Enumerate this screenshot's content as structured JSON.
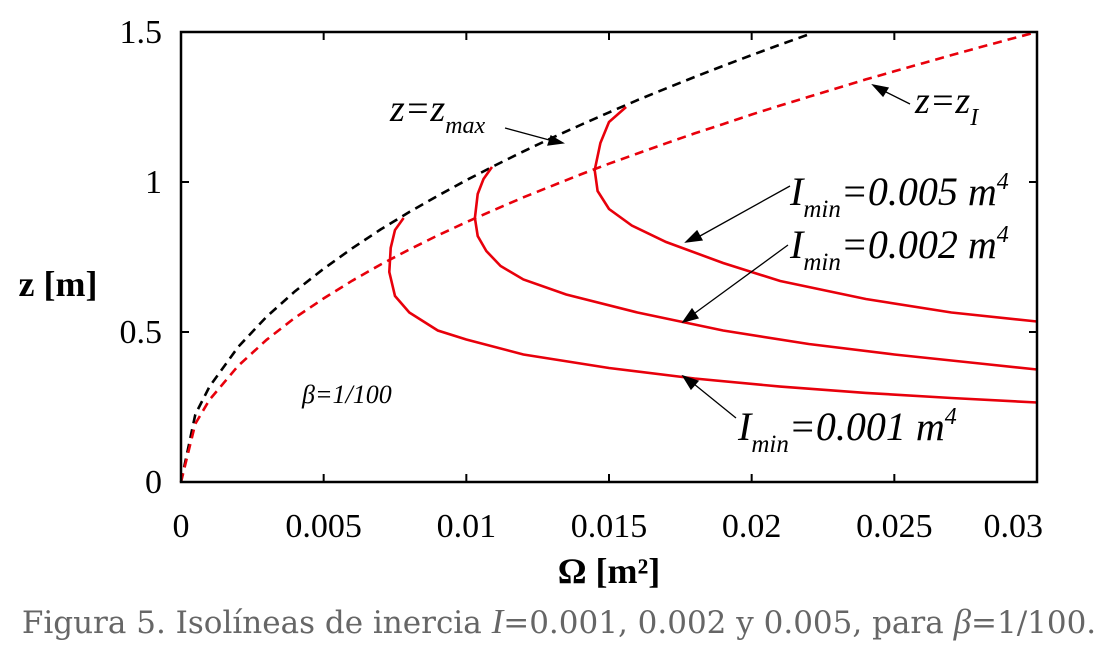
{
  "chart_data": {
    "type": "line",
    "xlabel": "Ω [m²]",
    "ylabel": "z [m]",
    "xlim": [
      0,
      0.03
    ],
    "ylim": [
      0,
      1.5
    ],
    "xticks": [
      "0",
      "0.005",
      "0.01",
      "0.015",
      "0.02",
      "0.025",
      "0.03"
    ],
    "yticks": [
      "0",
      "0.5",
      "1",
      "1.5"
    ],
    "grid": false,
    "beta_label": "β=1/100",
    "boundary_curves": [
      {
        "label": "z=zmax",
        "label_main": "z=z",
        "label_sub": "max",
        "color": "#000000",
        "style": "dashed",
        "x": [
          0,
          0.0005,
          0.001,
          0.002,
          0.003,
          0.004,
          0.005,
          0.006,
          0.007,
          0.008,
          0.009,
          0.01,
          0.011,
          0.012,
          0.013,
          0.014,
          0.015,
          0.016,
          0.017,
          0.018,
          0.019,
          0.02,
          0.021,
          0.022
        ],
        "y": [
          0,
          0.225,
          0.318,
          0.45,
          0.551,
          0.636,
          0.711,
          0.779,
          0.842,
          0.9,
          0.954,
          1.006,
          1.055,
          1.102,
          1.147,
          1.19,
          1.232,
          1.273,
          1.312,
          1.35,
          1.387,
          1.423,
          1.458,
          1.492
        ]
      },
      {
        "label": "z=zI",
        "label_main": "z=z",
        "label_sub": "I",
        "color": "#e8000b",
        "style": "dashed",
        "x": [
          0,
          0.0005,
          0.001,
          0.002,
          0.003,
          0.004,
          0.005,
          0.006,
          0.007,
          0.008,
          0.009,
          0.01,
          0.011,
          0.012,
          0.013,
          0.014,
          0.015,
          0.016,
          0.017,
          0.018,
          0.019,
          0.02,
          0.021,
          0.022,
          0.023,
          0.024,
          0.025,
          0.026,
          0.027,
          0.028,
          0.029,
          0.03
        ],
        "y": [
          0,
          0.194,
          0.274,
          0.387,
          0.474,
          0.548,
          0.612,
          0.671,
          0.725,
          0.775,
          0.822,
          0.866,
          0.908,
          0.949,
          0.987,
          1.025,
          1.061,
          1.095,
          1.129,
          1.162,
          1.193,
          1.225,
          1.255,
          1.284,
          1.313,
          1.342,
          1.369,
          1.396,
          1.423,
          1.449,
          1.475,
          1.5
        ]
      }
    ],
    "series": [
      {
        "name": "Imin=0.001 m4",
        "label_I": "I",
        "label_sub": "min",
        "label_val": "=0.001 m",
        "label_sup": "4",
        "color": "#e8000b",
        "x": [
          0.0078,
          0.0075,
          0.00735,
          0.0073,
          0.0075,
          0.008,
          0.009,
          0.01,
          0.012,
          0.015,
          0.018,
          0.021,
          0.024,
          0.027,
          0.03
        ],
        "y": [
          0.88,
          0.84,
          0.78,
          0.7,
          0.62,
          0.565,
          0.505,
          0.475,
          0.425,
          0.38,
          0.345,
          0.318,
          0.297,
          0.28,
          0.265
        ]
      },
      {
        "name": "Imin=0.002 m4",
        "label_I": "I",
        "label_sub": "min",
        "label_val": "=0.002 m",
        "label_sup": "4",
        "color": "#e8000b",
        "x": [
          0.0109,
          0.0106,
          0.0104,
          0.0103,
          0.0104,
          0.0107,
          0.0112,
          0.012,
          0.0135,
          0.016,
          0.019,
          0.022,
          0.025,
          0.028,
          0.03
        ],
        "y": [
          1.05,
          1.01,
          0.96,
          0.88,
          0.82,
          0.77,
          0.72,
          0.675,
          0.625,
          0.565,
          0.505,
          0.46,
          0.425,
          0.395,
          0.375
        ]
      },
      {
        "name": "Imin=0.005 m4",
        "label_I": "I",
        "label_sub": "min",
        "label_val": "=0.005 m",
        "label_sup": "4",
        "color": "#e8000b",
        "x": [
          0.0156,
          0.015,
          0.0147,
          0.0145,
          0.0146,
          0.015,
          0.0158,
          0.017,
          0.019,
          0.021,
          0.024,
          0.027,
          0.03
        ],
        "y": [
          1.25,
          1.2,
          1.13,
          1.04,
          0.97,
          0.91,
          0.855,
          0.8,
          0.73,
          0.67,
          0.61,
          0.565,
          0.535
        ]
      }
    ]
  },
  "caption": {
    "prefix": "Figura 5. Isolíneas de inercia ",
    "var_I": "I",
    "values": "=0.001, 0.002 y 0.005, para ",
    "var_beta": "β",
    "suffix": "=1/100."
  }
}
